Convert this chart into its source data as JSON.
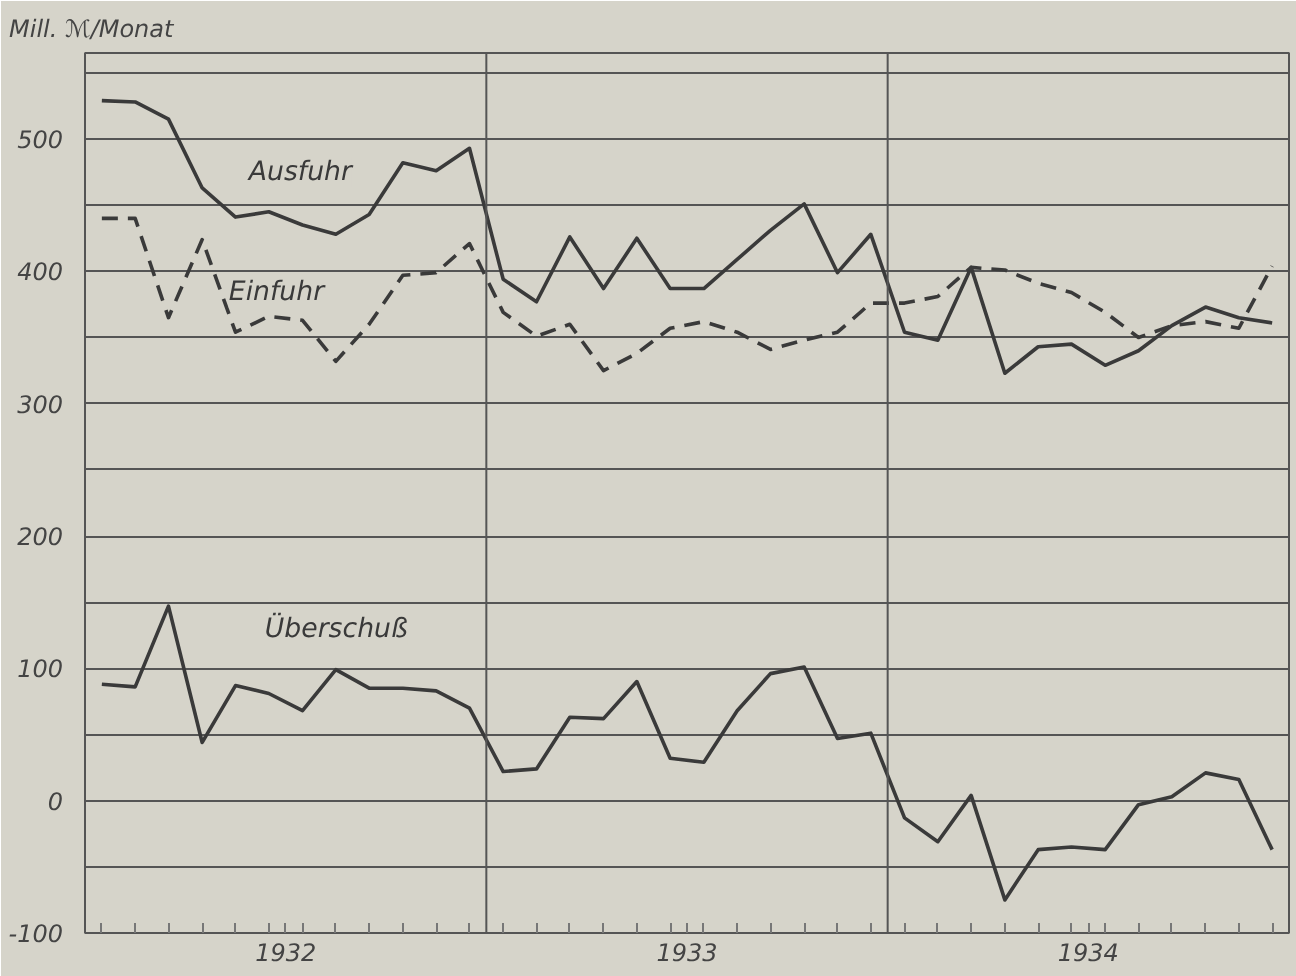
{
  "chart_data": {
    "type": "line",
    "ylabel": "Mill. ℳ/Monat",
    "grid": "y",
    "marker": "none",
    "x": [
      1932.042,
      1932.125,
      1932.208,
      1932.292,
      1932.375,
      1932.458,
      1932.542,
      1932.625,
      1932.708,
      1932.792,
      1932.875,
      1932.958,
      1933.042,
      1933.125,
      1933.208,
      1933.292,
      1933.375,
      1933.458,
      1933.542,
      1933.625,
      1933.708,
      1933.792,
      1933.875,
      1933.958,
      1934.042,
      1934.125,
      1934.208,
      1934.292,
      1934.375,
      1934.458,
      1934.542,
      1934.625,
      1934.708,
      1934.792,
      1934.875,
      1934.958
    ],
    "xlim": [
      1932,
      1935
    ],
    "xticks": [
      {
        "value": 1932.5,
        "label": "1932"
      },
      {
        "value": 1933.5,
        "label": "1933"
      },
      {
        "value": 1934.5,
        "label": "1934"
      },
      {
        "value": 1932.042,
        "label": null
      },
      {
        "value": 1932.125,
        "label": null
      },
      {
        "value": 1932.208,
        "label": null
      },
      {
        "value": 1932.292,
        "label": null
      },
      {
        "value": 1932.375,
        "label": null
      },
      {
        "value": 1932.458,
        "label": null
      },
      {
        "value": 1932.542,
        "label": null
      },
      {
        "value": 1932.625,
        "label": null
      },
      {
        "value": 1932.708,
        "label": null
      },
      {
        "value": 1932.792,
        "label": null
      },
      {
        "value": 1932.875,
        "label": null
      },
      {
        "value": 1932.958,
        "label": null
      },
      {
        "value": 1933.042,
        "label": null
      },
      {
        "value": 1933.125,
        "label": null
      },
      {
        "value": 1933.208,
        "label": null
      },
      {
        "value": 1933.292,
        "label": null
      },
      {
        "value": 1933.375,
        "label": null
      },
      {
        "value": 1933.458,
        "label": null
      },
      {
        "value": 1933.542,
        "label": null
      },
      {
        "value": 1933.625,
        "label": null
      },
      {
        "value": 1933.708,
        "label": null
      },
      {
        "value": 1933.792,
        "label": null
      },
      {
        "value": 1933.875,
        "label": null
      },
      {
        "value": 1933.958,
        "label": null
      },
      {
        "value": 1934.042,
        "label": null
      },
      {
        "value": 1934.125,
        "label": null
      },
      {
        "value": 1934.208,
        "label": null
      },
      {
        "value": 1934.292,
        "label": null
      },
      {
        "value": 1934.375,
        "label": null
      },
      {
        "value": 1934.458,
        "label": null
      },
      {
        "value": 1934.542,
        "label": null
      },
      {
        "value": 1934.625,
        "label": null
      },
      {
        "value": 1934.708,
        "label": null
      },
      {
        "value": 1934.792,
        "label": null
      },
      {
        "value": 1934.875,
        "label": null
      },
      {
        "value": 1934.958,
        "label": null
      }
    ],
    "ylim": [
      -100,
      565
    ],
    "yticks": [
      -100,
      {
        "value": -50,
        "label": null
      },
      0,
      {
        "value": 50,
        "label": null
      },
      100,
      {
        "value": 150,
        "label": null
      },
      200,
      {
        "value": 250,
        "label": null
      },
      300,
      {
        "value": 350,
        "label": null
      },
      400,
      {
        "value": 450,
        "label": null
      },
      500,
      {
        "value": 550,
        "label": null
      }
    ],
    "ref_lines": [
      {
        "axis": "x",
        "value": 1933,
        "label": null,
        "color": "#555555"
      },
      {
        "axis": "x",
        "value": 1934,
        "label": null,
        "color": "#555555"
      }
    ],
    "series": [
      {
        "name": "Ausfuhr",
        "color": "#3a3a3a",
        "line_style": "solid",
        "values": [
          529,
          528,
          515,
          463,
          441,
          445,
          435,
          428,
          443,
          482,
          476,
          493,
          394,
          377,
          426,
          387,
          425,
          387,
          387,
          409,
          431,
          451,
          399,
          428,
          354,
          348,
          403,
          323,
          343,
          345,
          329,
          340,
          359,
          373,
          365,
          361
        ]
      },
      {
        "name": "Einfuhr",
        "color": "#3a3a3a",
        "line_style": "dashed",
        "values": [
          440,
          440,
          365,
          424,
          354,
          366,
          363,
          332,
          360,
          397,
          399,
          421,
          369,
          351,
          360,
          325,
          338,
          357,
          362,
          354,
          341,
          348,
          354,
          376,
          376,
          381,
          403,
          401,
          391,
          384,
          369,
          350,
          359,
          362,
          357,
          404
        ]
      },
      {
        "name": "Überschuß",
        "color": "#3a3a3a",
        "line_style": "solid",
        "values": [
          88,
          86,
          147,
          44,
          87,
          81,
          68,
          99,
          85,
          85,
          83,
          70,
          22,
          24,
          63,
          62,
          90,
          32,
          29,
          68,
          96,
          101,
          47,
          51,
          -13,
          -31,
          4,
          -75,
          -37,
          -35,
          -37,
          -3,
          3,
          21,
          16,
          -37
        ]
      }
    ]
  }
}
